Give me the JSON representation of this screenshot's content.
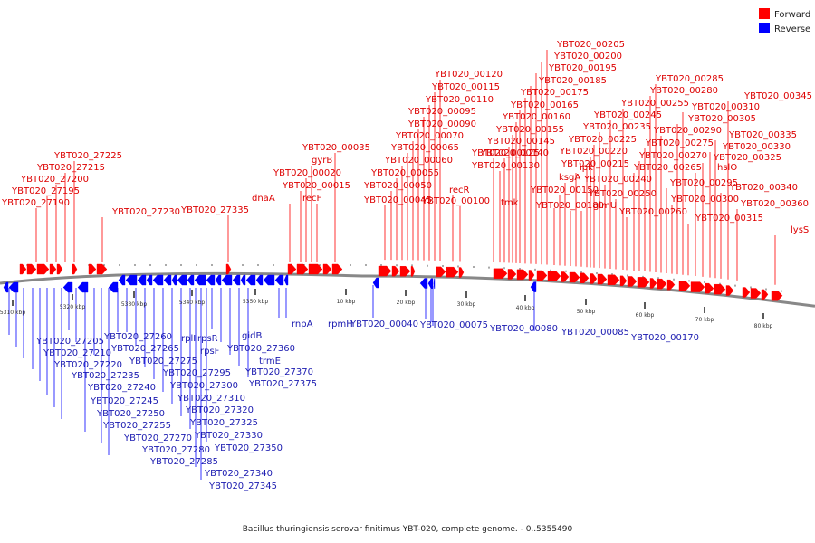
{
  "caption": "Bacillus thuringiensis serovar finitimus YBT-020, complete genome. - 0..5355490",
  "legend": {
    "entries": [
      {
        "label": "Forward",
        "color": "#ff0000"
      },
      {
        "label": "Reverse",
        "color": "#0000ff"
      }
    ]
  },
  "colors": {
    "forward": "#ff0000",
    "reverse": "#0000ff",
    "label_forward": "#dd0000",
    "label_reverse": "#1a1ab0",
    "backbone": "#888888",
    "tick": "#222222"
  },
  "scale_labels": [
    "5310 kbp",
    "5320 kbp",
    "5330 kbp",
    "5340 kbp",
    "5350 kbp",
    "10 kbp",
    "20 kbp",
    "30 kbp",
    "40 kbp",
    "50 kbp",
    "60 kbp",
    "70 kbp",
    "80 kbp"
  ],
  "forward_genes": [
    "YBT020_27190",
    "YBT020_27195",
    "YBT020_27200",
    "YBT020_27215",
    "YBT020_27225",
    "YBT020_27230",
    "YBT020_27335",
    "dnaA",
    "YBT020_00015",
    "YBT020_00020",
    "gyrB",
    "recF",
    "YBT020_00035",
    "YBT020_00045",
    "YBT020_00050",
    "YBT020_00055",
    "YBT020_00060",
    "YBT020_00065",
    "YBT020_00070",
    "YBT020_00090",
    "YBT020_00095",
    "YBT020_00110",
    "YBT020_00115",
    "YBT020_00120",
    "recR",
    "YBT020_00100",
    "YBT020_00125",
    "YBT020_00130",
    "YBT020_00140",
    "YBT020_00145",
    "YBT020_00155",
    "YBT020_00160",
    "YBT020_00165",
    "YBT020_00175",
    "YBT020_00185",
    "YBT020_00195",
    "YBT020_00200",
    "YBT020_00205",
    "tmk",
    "YBT020_00150",
    "ksgA",
    "YBT020_00180",
    "ipk",
    "glmU",
    "YBT020_00215",
    "YBT020_00220",
    "YBT020_00225",
    "YBT020_00235",
    "YBT020_00240",
    "YBT020_00245",
    "YBT020_00250",
    "YBT020_00255",
    "YBT020_00260",
    "YBT020_00265",
    "YBT020_00270",
    "YBT020_00275",
    "YBT020_00280",
    "YBT020_00285",
    "YBT020_00290",
    "YBT020_00295",
    "YBT020_00300",
    "YBT020_00305",
    "YBT020_00310",
    "YBT020_00315",
    "hslO",
    "YBT020_00325",
    "YBT020_00330",
    "YBT020_00335",
    "YBT020_00340",
    "YBT020_00345",
    "YBT020_00360",
    "lysS"
  ],
  "reverse_genes": [
    "YBT020_27205",
    "YBT020_27210",
    "YBT020_27220",
    "YBT020_27235",
    "YBT020_27240",
    "YBT020_27245",
    "YBT020_27250",
    "YBT020_27255",
    "YBT020_27260",
    "YBT020_27265",
    "YBT020_27270",
    "YBT020_27275",
    "YBT020_27280",
    "YBT020_27285",
    "rplI",
    "rpsR",
    "rpsF",
    "YBT020_27295",
    "YBT020_27300",
    "YBT020_27310",
    "YBT020_27320",
    "YBT020_27325",
    "YBT020_27330",
    "YBT020_27340",
    "YBT020_27345",
    "YBT020_27350",
    "gidB",
    "YBT020_27360",
    "trmE",
    "YBT020_27370",
    "YBT020_27375",
    "rnpA",
    "rpmH",
    "YBT020_00040",
    "YBT020_00075",
    "YBT020_00080",
    "YBT020_00085",
    "YBT020_00170"
  ]
}
